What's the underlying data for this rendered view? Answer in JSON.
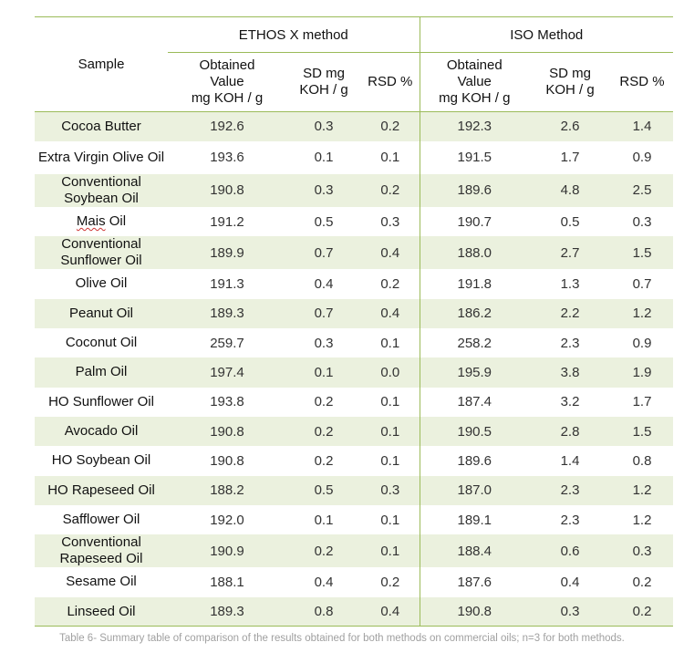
{
  "table": {
    "sample_header": "Sample",
    "groups": [
      "ETHOS X method",
      "ISO Method"
    ],
    "subheaders": {
      "value": [
        "Obtained",
        "Value",
        "mg KOH / g"
      ],
      "sd": [
        "SD mg",
        "KOH / g"
      ],
      "rsd": "RSD %"
    },
    "rows": [
      {
        "sample": "Cocoa Butter",
        "ethos": [
          "192.6",
          "0.3",
          "0.2"
        ],
        "iso": [
          "192.3",
          "2.6",
          "1.4"
        ]
      },
      {
        "sample": "Extra Virgin Olive Oil",
        "ethos": [
          "193.6",
          "0.1",
          "0.1"
        ],
        "iso": [
          "191.5",
          "1.7",
          "0.9"
        ]
      },
      {
        "sample": "Conventional Soybean Oil",
        "ethos": [
          "190.8",
          "0.3",
          "0.2"
        ],
        "iso": [
          "189.6",
          "4.8",
          "2.5"
        ]
      },
      {
        "sample": "Mais Oil",
        "ethos": [
          "191.2",
          "0.5",
          "0.3"
        ],
        "iso": [
          "190.7",
          "0.5",
          "0.3"
        ]
      },
      {
        "sample": "Conventional Sunflower Oil",
        "ethos": [
          "189.9",
          "0.7",
          "0.4"
        ],
        "iso": [
          "188.0",
          "2.7",
          "1.5"
        ]
      },
      {
        "sample": "Olive Oil",
        "ethos": [
          "191.3",
          "0.4",
          "0.2"
        ],
        "iso": [
          "191.8",
          "1.3",
          "0.7"
        ]
      },
      {
        "sample": "Peanut Oil",
        "ethos": [
          "189.3",
          "0.7",
          "0.4"
        ],
        "iso": [
          "186.2",
          "2.2",
          "1.2"
        ]
      },
      {
        "sample": "Coconut Oil",
        "ethos": [
          "259.7",
          "0.3",
          "0.1"
        ],
        "iso": [
          "258.2",
          "2.3",
          "0.9"
        ]
      },
      {
        "sample": "Palm Oil",
        "ethos": [
          "197.4",
          "0.1",
          "0.0"
        ],
        "iso": [
          "195.9",
          "3.8",
          "1.9"
        ]
      },
      {
        "sample": "HO Sunflower Oil",
        "ethos": [
          "193.8",
          "0.2",
          "0.1"
        ],
        "iso": [
          "187.4",
          "3.2",
          "1.7"
        ]
      },
      {
        "sample": "Avocado Oil",
        "ethos": [
          "190.8",
          "0.2",
          "0.1"
        ],
        "iso": [
          "190.5",
          "2.8",
          "1.5"
        ]
      },
      {
        "sample": "HO Soybean Oil",
        "ethos": [
          "190.8",
          "0.2",
          "0.1"
        ],
        "iso": [
          "189.6",
          "1.4",
          "0.8"
        ]
      },
      {
        "sample": "HO Rapeseed Oil",
        "ethos": [
          "188.2",
          "0.5",
          "0.3"
        ],
        "iso": [
          "187.0",
          "2.3",
          "1.2"
        ]
      },
      {
        "sample": "Safflower Oil",
        "ethos": [
          "192.0",
          "0.1",
          "0.1"
        ],
        "iso": [
          "189.1",
          "2.3",
          "1.2"
        ]
      },
      {
        "sample": "Conventional Rapeseed Oil",
        "ethos": [
          "190.9",
          "0.2",
          "0.1"
        ],
        "iso": [
          "188.4",
          "0.6",
          "0.3"
        ]
      },
      {
        "sample": "Sesame Oil",
        "ethos": [
          "188.1",
          "0.4",
          "0.2"
        ],
        "iso": [
          "187.6",
          "0.4",
          "0.2"
        ]
      },
      {
        "sample": "Linseed Oil",
        "ethos": [
          "189.3",
          "0.8",
          "0.4"
        ],
        "iso": [
          "190.8",
          "0.3",
          "0.2"
        ]
      }
    ]
  },
  "caption": "Table 6- Summary table of comparison of the results obtained for both methods on commercial oils; n=3 for both methods.",
  "colors": {
    "band": "#ebf1de",
    "rule": "#9bbb59",
    "caption": "#a0a0a0"
  }
}
